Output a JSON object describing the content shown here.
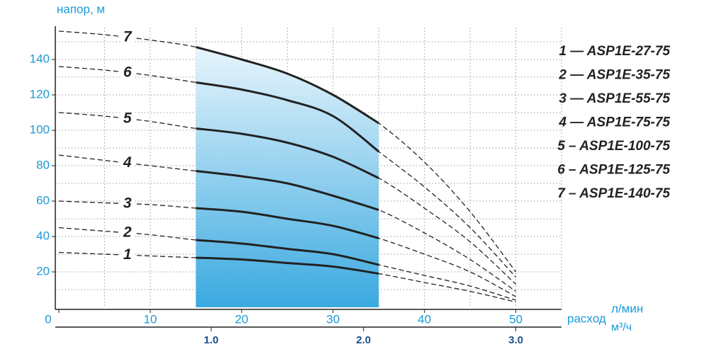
{
  "chart_data": {
    "type": "line",
    "y_label": "напор, м",
    "x_label": "расход",
    "x_unit": "л/мин",
    "x2_unit": "м³/ч",
    "x": [
      0,
      5,
      10,
      15,
      20,
      25,
      30,
      35,
      40,
      45,
      50
    ],
    "xlim": [
      0,
      55
    ],
    "ylim": [
      0,
      158
    ],
    "x2lim": [
      0,
      3.3
    ],
    "xticks": [
      0,
      10,
      20,
      30,
      40,
      50
    ],
    "yticks": [
      20,
      40,
      60,
      80,
      100,
      120,
      140
    ],
    "x2ticks": [
      {
        "value": 1,
        "label": "1.0"
      },
      {
        "value": 2,
        "label": "2.0"
      },
      {
        "value": 3,
        "label": "3.0"
      }
    ],
    "xgrid": [
      5,
      10,
      15,
      20,
      25,
      30,
      35,
      40,
      45,
      50,
      55
    ],
    "ygrid": [
      10,
      20,
      30,
      40,
      50,
      60,
      70,
      80,
      90,
      100,
      110,
      120,
      130,
      140,
      150
    ],
    "operating_range": [
      15,
      35
    ],
    "color": "#222222",
    "series": [
      {
        "name": "1 — ASP1E-27-75",
        "label": "1",
        "values": [
          31,
          30,
          29,
          28,
          27,
          25,
          23,
          19,
          14,
          9,
          3
        ]
      },
      {
        "name": "2 — ASP1E-35-75",
        "label": "2",
        "values": [
          45,
          43,
          41,
          38,
          36,
          33,
          30,
          24,
          18,
          12,
          4
        ]
      },
      {
        "name": "3 — ASP1E-55-75",
        "label": "3",
        "values": [
          60,
          59,
          58,
          56,
          54,
          50,
          46,
          39,
          30,
          20,
          6
        ]
      },
      {
        "name": "4 — ASP1E-75-75",
        "label": "4",
        "values": [
          86,
          83,
          80,
          77,
          74,
          70,
          63,
          55,
          42,
          27,
          9
        ]
      },
      {
        "name": "5 – ASP1E-100-75",
        "label": "5",
        "values": [
          110,
          108,
          105,
          101,
          98,
          93,
          85,
          73,
          56,
          37,
          13
        ]
      },
      {
        "name": "6 – ASP1E-125-75",
        "label": "6",
        "values": [
          136,
          134,
          131,
          127,
          123,
          117,
          108,
          88,
          68,
          45,
          17
        ]
      },
      {
        "name": "7 – ASP1E-140-75",
        "label": "7",
        "values": [
          156,
          154,
          151,
          147,
          140,
          132,
          120,
          104,
          82,
          54,
          20
        ]
      }
    ]
  }
}
